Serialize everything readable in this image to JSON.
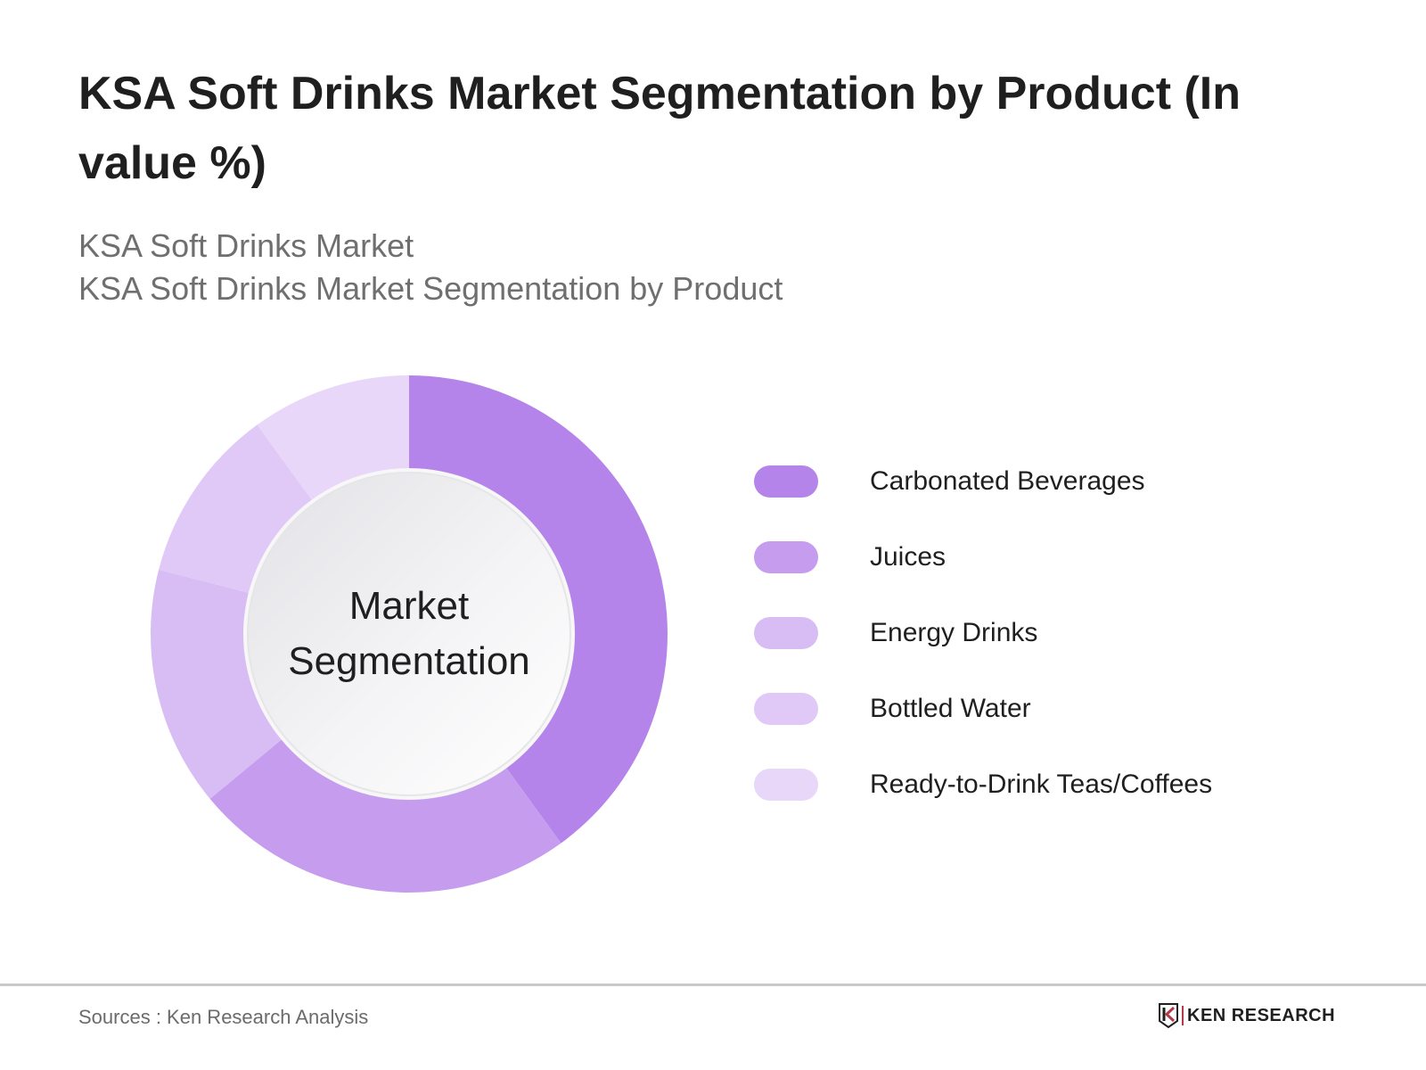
{
  "header": {
    "title": "KSA Soft Drinks Market Segmentation by Product (In value %)",
    "subtitle_1": "KSA Soft Drinks Market",
    "subtitle_2": "KSA Soft Drinks Market Segmentation by Product"
  },
  "center_label": {
    "line_1": "Market",
    "line_2": "Segmentation"
  },
  "legend": [
    {
      "label": "Carbonated Beverages",
      "color": "#b584ea"
    },
    {
      "label": "Juices",
      "color": "#c69cee"
    },
    {
      "label": "Energy Drinks",
      "color": "#d8bdf5"
    },
    {
      "label": "Bottled Water",
      "color": "#e0c9f6"
    },
    {
      "label": "Ready-to-Drink Teas/Coffees",
      "color": "#e8d7f9"
    }
  ],
  "footer": {
    "source": "Sources : Ken Research Analysis",
    "logo_text": "KEN RESEARCH"
  },
  "chart_data": {
    "type": "pie",
    "style": "donut",
    "title": "KSA Soft Drinks Market Segmentation by Product (In value %)",
    "subtitle": "KSA Soft Drinks Market Segmentation by Product",
    "center_text": "Market Segmentation",
    "categories": [
      "Carbonated Beverages",
      "Juices",
      "Energy Drinks",
      "Bottled Water",
      "Ready-to-Drink Teas/Coffees"
    ],
    "values": [
      40,
      24,
      15,
      11,
      10
    ],
    "unit": "%",
    "colors": [
      "#b584ea",
      "#c69cee",
      "#d8bdf5",
      "#e0c9f6",
      "#e8d7f9"
    ],
    "start_angle": "12 o'clock, clockwise",
    "data_labels_shown": false,
    "legend_position": "right",
    "source": "Sources : Ken Research Analysis"
  }
}
